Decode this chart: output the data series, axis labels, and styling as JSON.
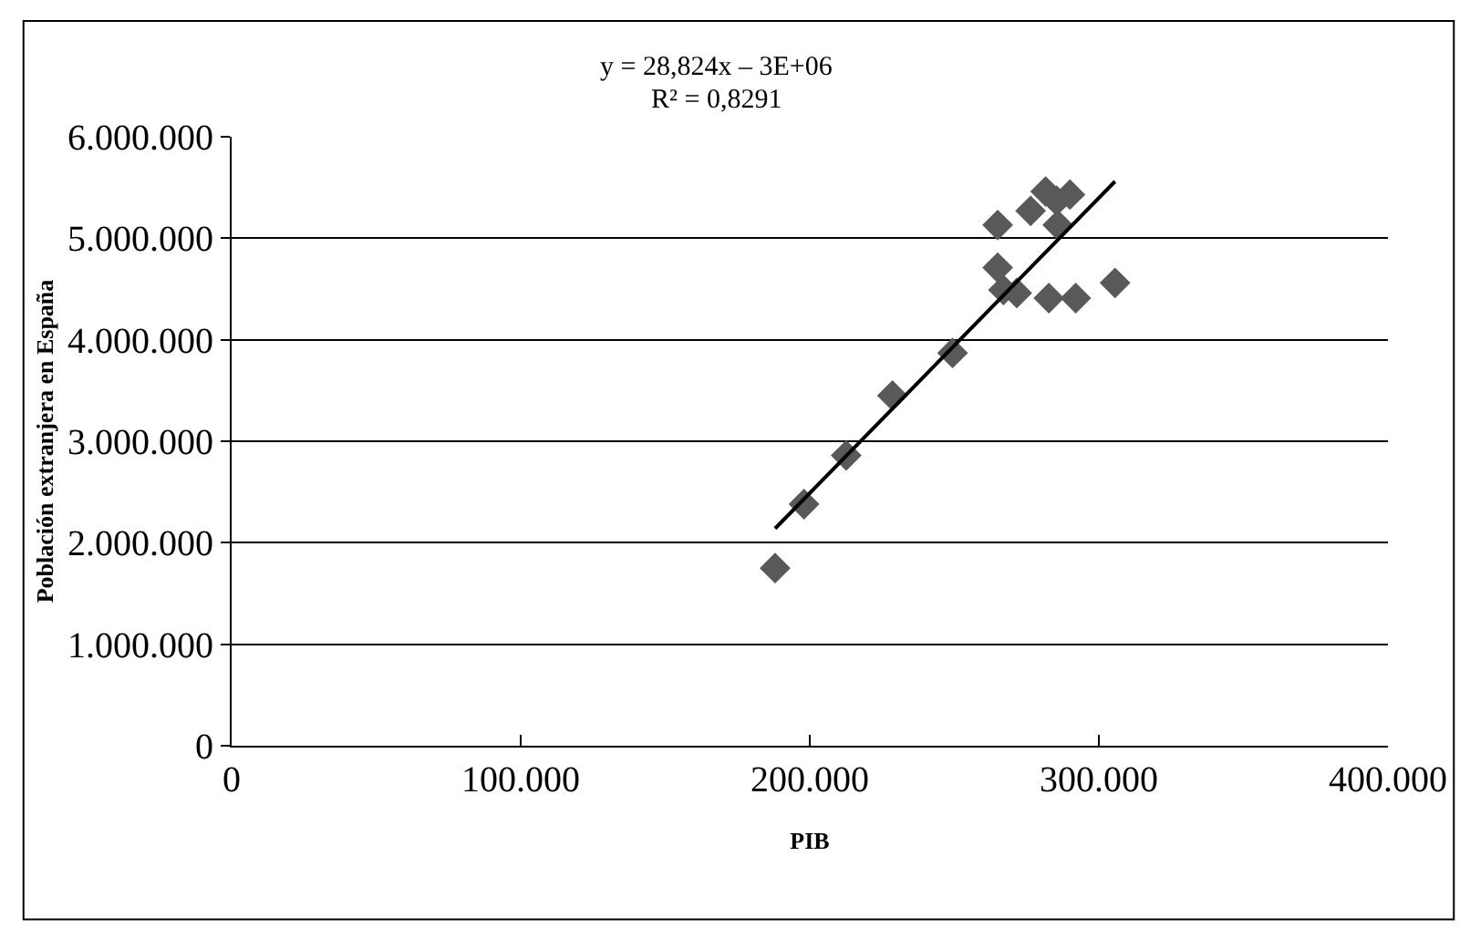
{
  "chart_data": {
    "type": "scatter",
    "xlabel": "PIB",
    "ylabel": "Población extranjera en España",
    "annotations": [
      "y = 28,824x – 3E+06",
      "R² = 0,8291"
    ],
    "xlim": [
      0,
      400000
    ],
    "xticks": [
      {
        "value": 0,
        "label": "0"
      },
      {
        "value": 100000,
        "label": "100.000"
      },
      {
        "value": 200000,
        "label": "200.000"
      },
      {
        "value": 300000,
        "label": "300.000"
      },
      {
        "value": 400000,
        "label": "400.000"
      }
    ],
    "ylim": [
      0,
      6000000
    ],
    "yticks": [
      {
        "value": 0,
        "label": "0"
      },
      {
        "value": 1000000,
        "label": "1.000.000"
      },
      {
        "value": 2000000,
        "label": "2.000.000"
      },
      {
        "value": 3000000,
        "label": "3.000.000"
      },
      {
        "value": 4000000,
        "label": "4.000.000"
      },
      {
        "value": 5000000,
        "label": "5.000.000"
      },
      {
        "value": 6000000,
        "label": "6.000.000"
      }
    ],
    "grid": "y",
    "marker": "diamond",
    "series": [
      {
        "color": "#595959",
        "x": [
          188000,
          198000,
          212600,
          228600,
          249400,
          265000,
          265000,
          267000,
          271600,
          276400,
          281600,
          285400,
          290000,
          285800,
          282700,
          292000,
          305600
        ],
        "values": [
          1750000,
          2380000,
          2860000,
          3450000,
          3870000,
          4710000,
          5130000,
          4490000,
          4460000,
          5270000,
          5460000,
          5370000,
          5430000,
          5130000,
          4410000,
          4410000,
          4560000
        ]
      },
      {
        "type": "line",
        "color": "#000000",
        "line_style": "solid",
        "marker": "none",
        "x": [
          188000,
          305600
        ],
        "values": [
          2140000,
          5560000
        ]
      }
    ]
  }
}
